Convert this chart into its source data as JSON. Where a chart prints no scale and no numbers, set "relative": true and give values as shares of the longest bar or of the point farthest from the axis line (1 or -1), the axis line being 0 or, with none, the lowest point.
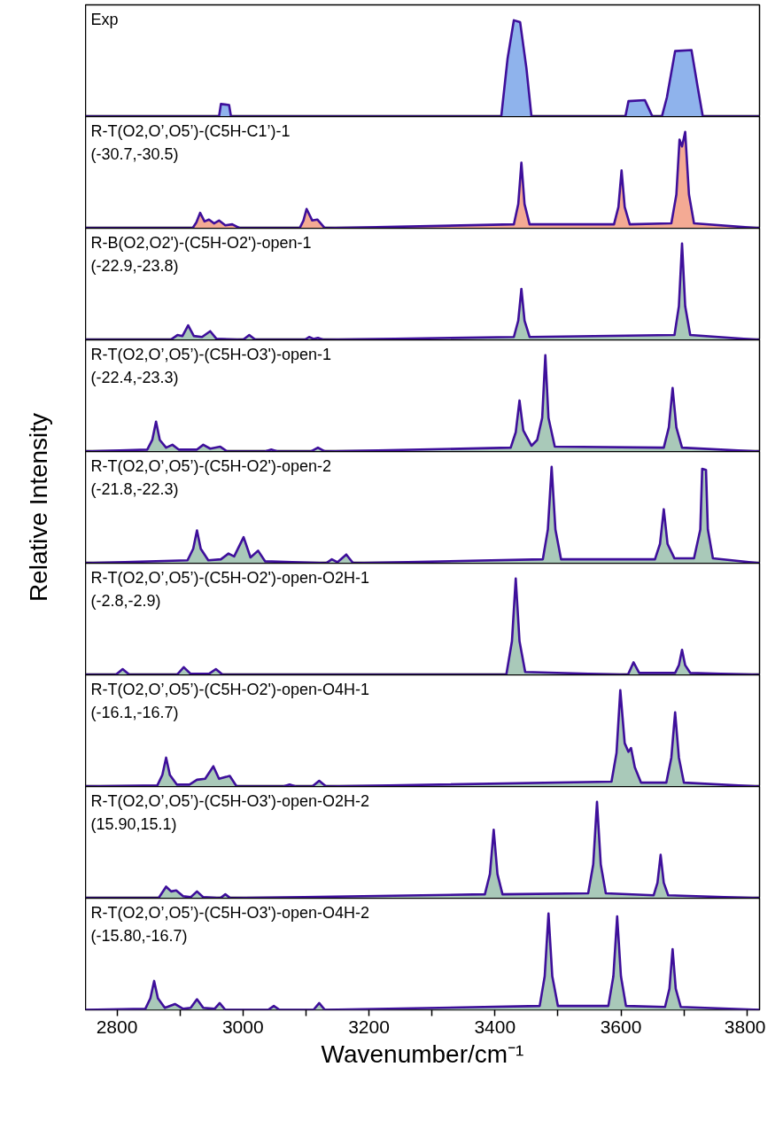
{
  "chart_data": [
    {
      "type": "area",
      "relative": true,
      "title": "Exp",
      "xlim": [
        2750,
        3820
      ],
      "tick_labels": false,
      "grid": false,
      "x": [
        2750,
        2962,
        2965,
        2978,
        2981,
        3410,
        3420,
        3430,
        3440,
        3450,
        3458,
        3600,
        3607,
        3612,
        3638,
        3643,
        3650,
        3665,
        3673,
        3686,
        3712,
        3722,
        3730,
        3820
      ],
      "series": [
        {
          "color": "#8fb3ec",
          "values": [
            0,
            0,
            0.13,
            0.12,
            0,
            0,
            0.6,
            1.0,
            0.98,
            0.5,
            0,
            0,
            0,
            0.16,
            0.17,
            0.1,
            0,
            0,
            0.2,
            0.68,
            0.69,
            0.3,
            0,
            0
          ]
        }
      ]
    },
    {
      "type": "area",
      "relative": true,
      "title": "R-T(O2,O’,O5’)-(C5H-C1’)-1",
      "subtitle": "(-30.7,-30.5)",
      "xlim": [
        2750,
        3820
      ],
      "tick_labels": false,
      "grid": false,
      "x": [
        2750,
        2920,
        2926,
        2932,
        2939,
        2946,
        2954,
        2962,
        2972,
        2983,
        2995,
        3090,
        3096,
        3101,
        3110,
        3118,
        3130,
        3430,
        3437,
        3442,
        3447,
        3455,
        3589,
        3596,
        3601,
        3606,
        3614,
        3680,
        3688,
        3693,
        3697,
        3702,
        3708,
        3716,
        3820
      ],
      "series": [
        {
          "color": "#f4aa94",
          "values": [
            0,
            0,
            0.06,
            0.16,
            0.07,
            0.09,
            0.05,
            0.08,
            0.03,
            0.04,
            0,
            0,
            0.08,
            0.2,
            0.08,
            0.09,
            0,
            0.04,
            0.25,
            0.68,
            0.25,
            0.04,
            0.04,
            0.22,
            0.6,
            0.22,
            0.04,
            0.05,
            0.35,
            0.92,
            0.85,
            1.0,
            0.35,
            0.05,
            0
          ]
        }
      ]
    },
    {
      "type": "area",
      "relative": true,
      "title": "R-B(O2,O2')-(C5H-O2')-open-1",
      "subtitle": "(-22.9,-23.8)",
      "xlim": [
        2750,
        3820
      ],
      "tick_labels": false,
      "grid": false,
      "x": [
        2750,
        2885,
        2896,
        2904,
        2913,
        2922,
        2935,
        2948,
        2958,
        3000,
        3010,
        3020,
        3098,
        3105,
        3112,
        3119,
        3128,
        3430,
        3437,
        3442,
        3447,
        3455,
        3685,
        3692,
        3697,
        3702,
        3710,
        3820
      ],
      "series": [
        {
          "color": "#a9c9b9",
          "values": [
            0,
            0,
            0.05,
            0.04,
            0.15,
            0.04,
            0.03,
            0.09,
            0.01,
            0,
            0.05,
            0,
            0,
            0.03,
            0.01,
            0.02,
            0,
            0.03,
            0.2,
            0.53,
            0.2,
            0.03,
            0.05,
            0.35,
            1.0,
            0.35,
            0.05,
            0
          ]
        }
      ]
    },
    {
      "type": "area",
      "relative": true,
      "title": "R-T(O2,O’,O5’)-(C5H-O3')-open-1",
      "subtitle": "(-22.4,-23.3)",
      "xlim": [
        2750,
        3820
      ],
      "tick_labels": false,
      "grid": false,
      "x": [
        2750,
        2848,
        2856,
        2862,
        2868,
        2878,
        2888,
        2898,
        2927,
        2937,
        2948,
        2964,
        2975,
        3035,
        3045,
        3055,
        3108,
        3119,
        3130,
        3425,
        3433,
        3439,
        3445,
        3458,
        3467,
        3475,
        3480,
        3485,
        3495,
        3668,
        3676,
        3682,
        3688,
        3697,
        3820
      ],
      "series": [
        {
          "color": "#a9c9b9",
          "values": [
            0,
            0.02,
            0.12,
            0.31,
            0.12,
            0.04,
            0.07,
            0.02,
            0.02,
            0.07,
            0.03,
            0.05,
            0,
            0,
            0.02,
            0,
            0,
            0.04,
            0,
            0.04,
            0.2,
            0.53,
            0.22,
            0.06,
            0.12,
            0.35,
            1.0,
            0.35,
            0.05,
            0.04,
            0.25,
            0.66,
            0.25,
            0.04,
            0
          ]
        }
      ]
    },
    {
      "type": "area",
      "relative": true,
      "title": "R-T(O2,O’,O5’)-(C5H-O2')-open-2",
      "subtitle": "(-21.8,-22.3)",
      "ylabel": "Relative Intensity",
      "xlim": [
        2750,
        3820
      ],
      "tick_labels": false,
      "grid": false,
      "x": [
        2750,
        2912,
        2921,
        2927,
        2933,
        2945,
        2965,
        2977,
        2986,
        3001,
        3012,
        3024,
        3035,
        3132,
        3141,
        3150,
        3164,
        3175,
        3476,
        3484,
        3490,
        3496,
        3505,
        3654,
        3662,
        3668,
        3674,
        3685,
        3716,
        3726,
        3729,
        3735,
        3738,
        3746,
        3820
      ],
      "series": [
        {
          "color": "#a9c9b9",
          "values": [
            0,
            0.03,
            0.15,
            0.34,
            0.15,
            0.03,
            0.04,
            0.1,
            0.07,
            0.27,
            0.06,
            0.13,
            0.02,
            0,
            0.04,
            0.01,
            0.09,
            0,
            0.04,
            0.35,
            1.0,
            0.35,
            0.04,
            0.04,
            0.2,
            0.56,
            0.2,
            0.05,
            0.05,
            0.35,
            0.98,
            0.97,
            0.35,
            0.05,
            0
          ]
        }
      ]
    },
    {
      "type": "area",
      "relative": true,
      "title": "R-T(O2,O’,O5’)-(C5H-O2')-open-O2H-1",
      "subtitle": "(-2.8,-2.9)",
      "xlim": [
        2750,
        3820
      ],
      "tick_labels": false,
      "grid": false,
      "x": [
        2750,
        2798,
        2809,
        2820,
        2895,
        2906,
        2917,
        2946,
        2957,
        2968,
        3418,
        3427,
        3433,
        3439,
        3448,
        3611,
        3620,
        3629,
        3686,
        3692,
        3697,
        3702,
        3710,
        3820
      ],
      "series": [
        {
          "color": "#a9c9b9",
          "values": [
            0,
            0,
            0.06,
            0,
            0,
            0.08,
            0.01,
            0.01,
            0.06,
            0,
            0,
            0.35,
            1.0,
            0.35,
            0.03,
            0,
            0.13,
            0.02,
            0.02,
            0.1,
            0.26,
            0.1,
            0.02,
            0
          ]
        }
      ]
    },
    {
      "type": "area",
      "relative": true,
      "title": "R-T(O2,O’,O5’)-(C5H-O2')-open-O4H-1",
      "subtitle": "(-16.1,-16.7)",
      "xlim": [
        2750,
        3820
      ],
      "tick_labels": false,
      "grid": false,
      "x": [
        2750,
        2864,
        2872,
        2878,
        2884,
        2895,
        2915,
        2927,
        2940,
        2953,
        2962,
        2979,
        2990,
        3064,
        3074,
        3084,
        3110,
        3121,
        3132,
        3585,
        3593,
        3599,
        3606,
        3612,
        3616,
        3622,
        3632,
        3672,
        3680,
        3686,
        3692,
        3700,
        3820
      ],
      "series": [
        {
          "color": "#a9c9b9",
          "values": [
            0,
            0.01,
            0.12,
            0.3,
            0.12,
            0.02,
            0.02,
            0.07,
            0.08,
            0.21,
            0.08,
            0.11,
            0,
            0,
            0.02,
            0,
            0,
            0.06,
            0,
            0.05,
            0.35,
            1.0,
            0.45,
            0.36,
            0.4,
            0.2,
            0.04,
            0.04,
            0.3,
            0.77,
            0.3,
            0.04,
            0
          ]
        }
      ]
    },
    {
      "type": "area",
      "relative": true,
      "title": "R-T(O2,O’,O5’)-(C5H-O3')-open-O2H-2",
      "subtitle": "(15.90,15.1)",
      "xlim": [
        2750,
        3820
      ],
      "tick_labels": false,
      "grid": false,
      "x": [
        2750,
        2866,
        2878,
        2886,
        2894,
        2905,
        2917,
        2927,
        2937,
        2964,
        2972,
        2980,
        3384,
        3392,
        3398,
        3404,
        3412,
        3548,
        3556,
        3562,
        3568,
        3576,
        3652,
        3658,
        3663,
        3668,
        3675,
        3820
      ],
      "series": [
        {
          "color": "#a9c9b9",
          "values": [
            0,
            0,
            0.12,
            0.07,
            0.08,
            0.02,
            0.01,
            0.07,
            0.01,
            0,
            0.04,
            0,
            0.04,
            0.25,
            0.71,
            0.25,
            0.04,
            0.05,
            0.35,
            1.0,
            0.35,
            0.05,
            0.03,
            0.16,
            0.45,
            0.16,
            0.03,
            0
          ]
        }
      ]
    },
    {
      "type": "area",
      "relative": true,
      "title": "R-T(O2,O’,O5’)-(C5H-O3')-open-O4H-2",
      "subtitle": "(-15.80,-16.7)",
      "xlabel": "Wavenumber/cm⁻¹",
      "xlim": [
        2750,
        3820
      ],
      "grid": false,
      "xticks": [
        2800,
        {
          "value": 2900,
          "label": null
        },
        3000,
        {
          "value": 3100,
          "label": null
        },
        3200,
        {
          "value": 3300,
          "label": null
        },
        3400,
        {
          "value": 3500,
          "label": null
        },
        3600,
        {
          "value": 3700,
          "label": null
        },
        3800
      ],
      "x": [
        2750,
        2845,
        2853,
        2859,
        2865,
        2876,
        2892,
        2905,
        2917,
        2927,
        2937,
        2955,
        2963,
        2972,
        3040,
        3049,
        3058,
        3112,
        3121,
        3130,
        3471,
        3479,
        3485,
        3491,
        3500,
        3580,
        3588,
        3594,
        3600,
        3608,
        3670,
        3677,
        3682,
        3687,
        3695,
        3820
      ],
      "series": [
        {
          "color": "#a9c9b9",
          "values": [
            0,
            0.01,
            0.12,
            0.3,
            0.12,
            0.02,
            0.06,
            0.01,
            0.02,
            0.11,
            0.02,
            0.01,
            0.07,
            0,
            0,
            0.04,
            0,
            0,
            0.07,
            0,
            0.04,
            0.35,
            1.0,
            0.35,
            0.04,
            0.04,
            0.35,
            0.97,
            0.35,
            0.04,
            0.03,
            0.22,
            0.63,
            0.22,
            0.03,
            0
          ]
        }
      ]
    }
  ]
}
